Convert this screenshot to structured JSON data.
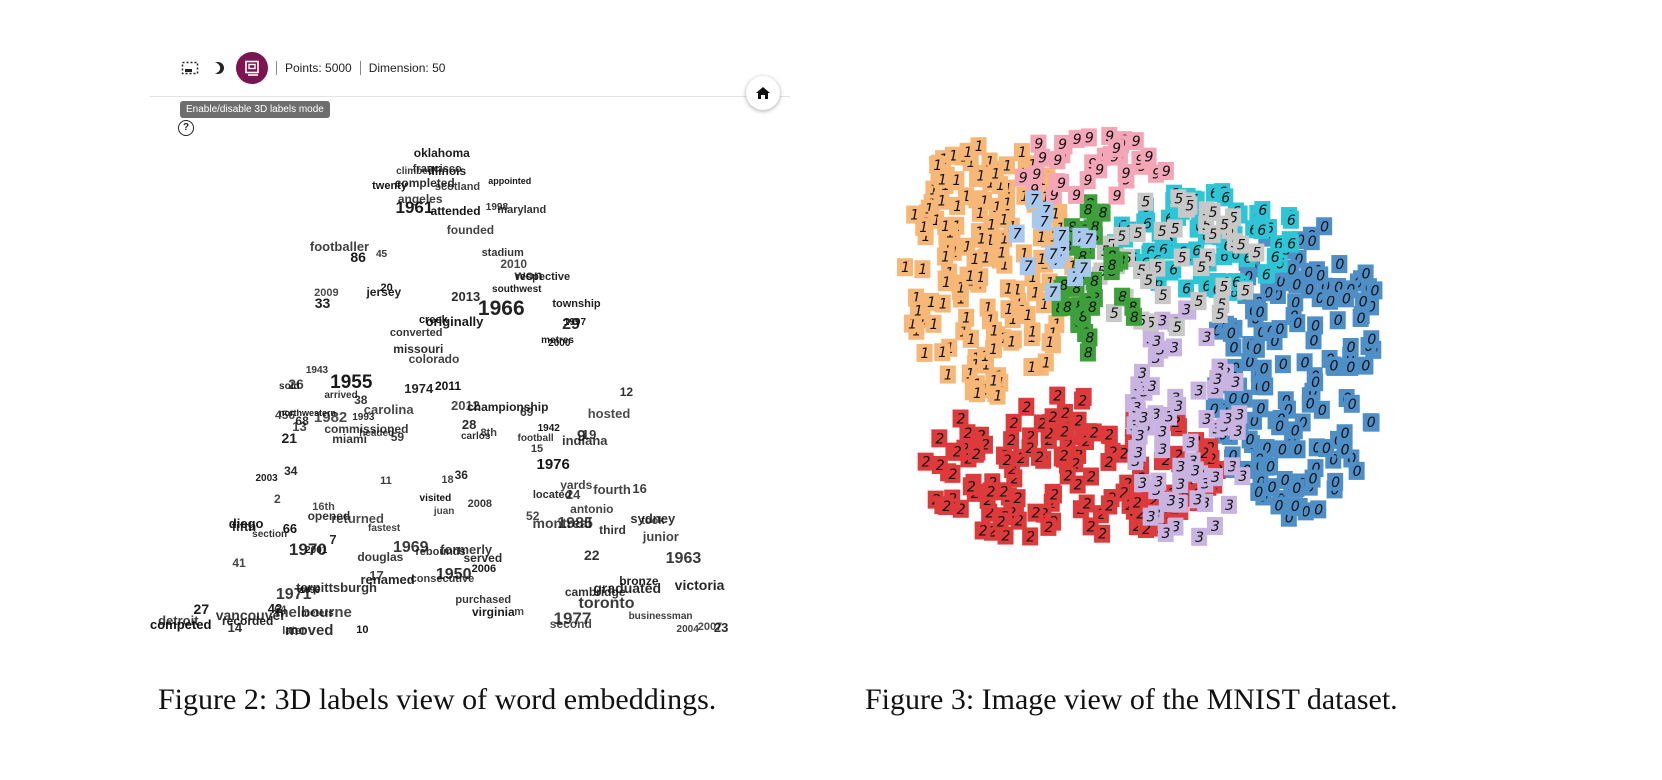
{
  "figure2": {
    "toolbar": {
      "points_label": "Points: 5000",
      "dimension_label": "Dimension: 50",
      "tooltip": "Enable/disable 3D labels mode",
      "active_color": "#7b1450"
    },
    "help_glyph": "?",
    "caption": "Figure 2: 3D labels view of word embeddings.",
    "labels": [
      {
        "t": "29",
        "s": 16
      },
      {
        "t": "27",
        "s": 14
      },
      {
        "t": "26",
        "s": 14
      },
      {
        "t": "23",
        "s": 13
      },
      {
        "t": "28",
        "s": 13
      },
      {
        "t": "22",
        "s": 14
      },
      {
        "t": "19",
        "s": 13
      },
      {
        "t": "21",
        "s": 14
      },
      {
        "t": "17",
        "s": 13
      },
      {
        "t": "14",
        "s": 13
      },
      {
        "t": "13",
        "s": 13
      },
      {
        "t": "24",
        "s": 13
      },
      {
        "t": "16",
        "s": 13
      },
      {
        "t": "11",
        "s": 11
      },
      {
        "t": "15",
        "s": 11
      },
      {
        "t": "respective",
        "s": 11
      },
      {
        "t": "12",
        "s": 12
      },
      {
        "t": "20",
        "s": 11
      },
      {
        "t": "18",
        "s": 11
      },
      {
        "t": "1982",
        "s": 15
      },
      {
        "t": "1985",
        "s": 16
      },
      {
        "t": "1976",
        "s": 15
      },
      {
        "t": "1974",
        "s": 13
      },
      {
        "t": "1950",
        "s": 16
      },
      {
        "t": "1963",
        "s": 16
      },
      {
        "t": "1971",
        "s": 16
      },
      {
        "t": "1977",
        "s": 17
      },
      {
        "t": "1961",
        "s": 17
      },
      {
        "t": "1970",
        "s": 17
      },
      {
        "t": "1969",
        "s": 16
      },
      {
        "t": "1955",
        "s": 19
      },
      {
        "t": "1966",
        "s": 21
      },
      {
        "t": "1993",
        "s": 10
      },
      {
        "t": "1943",
        "s": 10
      },
      {
        "t": "1942",
        "s": 10
      },
      {
        "t": "2001",
        "s": 10
      },
      {
        "t": "2003",
        "s": 10
      },
      {
        "t": "2006",
        "s": 11
      },
      {
        "t": "1998",
        "s": 10
      },
      {
        "t": "2004",
        "s": 10
      },
      {
        "t": "2000",
        "s": 10
      },
      {
        "t": "2007",
        "s": 11
      },
      {
        "t": "1996",
        "s": 9
      },
      {
        "t": "1997",
        "s": 10
      },
      {
        "t": "2008",
        "s": 11
      },
      {
        "t": "2009",
        "s": 11
      },
      {
        "t": "2010",
        "s": 12
      },
      {
        "t": "2011",
        "s": 12
      },
      {
        "t": "2013",
        "s": 13
      },
      {
        "t": "2012",
        "s": 13
      },
      {
        "t": "opened",
        "s": 12
      },
      {
        "t": "southwest",
        "s": 10
      },
      {
        "t": "northwestern",
        "s": 9
      },
      {
        "t": "founded",
        "s": 12
      },
      {
        "t": "renamed",
        "s": 13
      },
      {
        "t": "commissioned",
        "s": 12
      },
      {
        "t": "returned",
        "s": 13
      },
      {
        "t": "served",
        "s": 12
      },
      {
        "t": "formerly",
        "s": 13
      },
      {
        "t": "township",
        "s": 11
      },
      {
        "t": "completed",
        "s": 12
      },
      {
        "t": "attended",
        "s": 12
      },
      {
        "t": "hosted",
        "s": 13
      },
      {
        "t": "moved",
        "s": 15
      },
      {
        "t": "melbourne",
        "s": 15
      },
      {
        "t": "vancouver",
        "s": 14
      },
      {
        "t": "scotland",
        "s": 11
      },
      {
        "t": "sydney",
        "s": 13
      },
      {
        "t": "maryland",
        "s": 11
      },
      {
        "t": "illinois",
        "s": 12
      },
      {
        "t": "missouri",
        "s": 12
      },
      {
        "t": "victoria",
        "s": 14
      },
      {
        "t": "footballer",
        "s": 13
      },
      {
        "t": "virginia",
        "s": 12
      },
      {
        "t": "montreal",
        "s": 14
      },
      {
        "t": "16th",
        "s": 11
      },
      {
        "t": "purchased",
        "s": 11
      },
      {
        "t": "graduated",
        "s": 14
      },
      {
        "t": "oklahoma",
        "s": 12
      },
      {
        "t": "toronto",
        "s": 16
      },
      {
        "t": "competed",
        "s": 13
      },
      {
        "t": "originally",
        "s": 13
      },
      {
        "t": "championship",
        "s": 12
      },
      {
        "t": "consecutive",
        "s": 11
      },
      {
        "t": "converted",
        "s": 11
      },
      {
        "t": "third",
        "s": 12
      },
      {
        "t": "stadium",
        "s": 11
      },
      {
        "t": "antonio",
        "s": 12
      },
      {
        "t": "cambridge",
        "s": 12
      },
      {
        "t": "carolina",
        "s": 13
      },
      {
        "t": "colorado",
        "s": 12
      },
      {
        "t": "diego",
        "s": 13
      },
      {
        "t": "second",
        "s": 12
      },
      {
        "t": "fourth",
        "s": 13
      },
      {
        "t": "douglas",
        "s": 12
      },
      {
        "t": "won",
        "s": 14
      },
      {
        "t": "francisco",
        "s": 11
      },
      {
        "t": "indiana",
        "s": 13
      },
      {
        "t": "fifth",
        "s": 13
      },
      {
        "t": "8th",
        "s": 11
      },
      {
        "t": "creek",
        "s": 11
      },
      {
        "t": "terpittsburgh",
        "s": 13
      },
      {
        "t": "jersey",
        "s": 12
      },
      {
        "t": "bronze",
        "s": 12
      },
      {
        "t": "recorded",
        "s": 12
      },
      {
        "t": "fastest",
        "s": 10
      },
      {
        "t": "junior",
        "s": 13
      },
      {
        "t": "miami",
        "s": 12
      },
      {
        "t": "angeles",
        "s": 12
      },
      {
        "t": "detroit",
        "s": 13
      },
      {
        "t": "rebounds",
        "s": 11
      },
      {
        "t": "yards",
        "s": 12
      },
      {
        "t": "located",
        "s": 11
      },
      {
        "t": "twenty",
        "s": 11
      },
      {
        "t": "section",
        "s": 10
      },
      {
        "t": "metres",
        "s": 10
      },
      {
        "t": "climbed",
        "s": 10
      },
      {
        "t": "meters",
        "s": 10
      },
      {
        "t": "sold",
        "s": 10
      },
      {
        "t": "visited",
        "s": 10
      },
      {
        "t": "arrived",
        "s": 10
      },
      {
        "t": "appointed",
        "s": 9
      },
      {
        "t": "headed",
        "s": 10
      },
      {
        "t": "businessman",
        "s": 10
      },
      {
        "t": "football",
        "s": 10
      },
      {
        "t": "carlos",
        "s": 10
      },
      {
        "t": "later",
        "s": 11
      },
      {
        "t": "took",
        "s": 11
      },
      {
        "t": "juan",
        "s": 10
      },
      {
        "t": "9",
        "s": 16
      },
      {
        "t": "33",
        "s": 14
      },
      {
        "t": "34",
        "s": 12
      },
      {
        "t": "42",
        "s": 13
      },
      {
        "t": "38",
        "s": 12
      },
      {
        "t": "36",
        "s": 12
      },
      {
        "t": "45",
        "s": 10
      },
      {
        "t": "66",
        "s": 13
      },
      {
        "t": "68",
        "s": 12
      },
      {
        "t": "69",
        "s": 12
      },
      {
        "t": "59",
        "s": 12
      },
      {
        "t": "52",
        "s": 12
      },
      {
        "t": "41",
        "s": 12
      },
      {
        "t": "456",
        "s": 12
      },
      {
        "t": "86",
        "s": 14
      },
      {
        "t": "7",
        "s": 13
      },
      {
        "t": "64",
        "s": 11
      },
      {
        "t": "2",
        "s": 12
      },
      {
        "t": "m",
        "s": 11
      },
      {
        "t": "10",
        "s": 11
      }
    ]
  },
  "figure3": {
    "caption": "Figure 3: Image view of the MNIST dataset.",
    "class_colors": {
      "0": "#4f8fc7",
      "1": "#f6b777",
      "2": "#dd3a3b",
      "3": "#c9b3e0",
      "5": "#c8c8c8",
      "6": "#2ec6d6",
      "7": "#a9c8ee",
      "8": "#3da03a",
      "9": "#f4a6b6"
    }
  }
}
